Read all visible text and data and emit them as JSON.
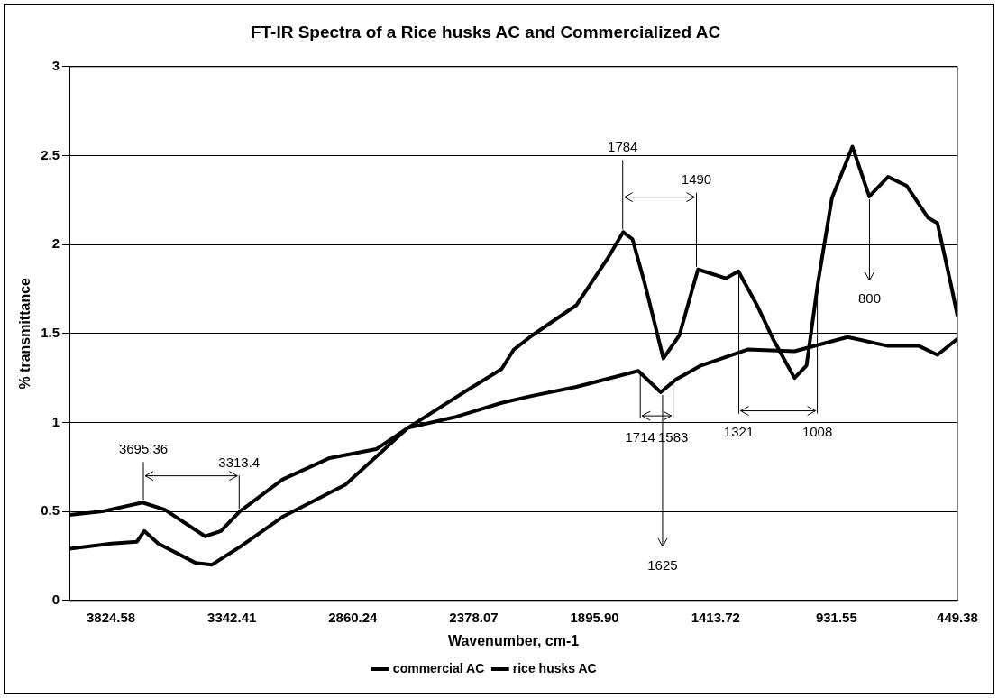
{
  "chart_data": {
    "type": "line",
    "title": "FT-IR Spectra of a Rice husks AC and Commercialized AC",
    "xlabel": "Wavenumber, cm-1",
    "ylabel": "% transmittance",
    "xlim": [
      3990,
      449.38
    ],
    "xticks": [
      3824.58,
      3342.41,
      2860.24,
      2378.07,
      {
        "value": 1895.9,
        "label": "1895.90"
      },
      1413.72,
      931.55,
      449.38
    ],
    "ylim": [
      0,
      3
    ],
    "yticks": [
      0,
      0.5,
      1,
      1.5,
      2,
      2.5,
      3
    ],
    "grid": "y",
    "legend": "bottom",
    "marker": "none",
    "line_style": "solid",
    "series": [
      {
        "name": "commercial AC",
        "color": "#000000",
        "x": [
          3990,
          3859,
          3699,
          3610,
          3449,
          3386,
          3311,
          3140,
          2953,
          2767,
          2640,
          2453,
          2267,
          2144,
          1969,
          1722,
          1670,
          1633,
          1573,
          1472,
          1286,
          1099,
          887,
          727,
          603,
          529,
          449.38
        ],
        "values": [
          0.48,
          0.5,
          0.55,
          0.51,
          0.36,
          0.39,
          0.5,
          0.68,
          0.8,
          0.85,
          0.97,
          1.03,
          1.11,
          1.15,
          1.2,
          1.29,
          1.22,
          1.17,
          1.24,
          1.32,
          1.41,
          1.4,
          1.48,
          1.43,
          1.43,
          1.38,
          1.47
        ]
      },
      {
        "name": "rice husks AC",
        "color": "#000000",
        "x": [
          3990,
          3822,
          3721,
          3692,
          3636,
          3486,
          3423,
          3311,
          3140,
          2890,
          2640,
          2394,
          2267,
          2218,
          2144,
          1968,
          1845,
          1782,
          1745,
          1696,
          1622,
          1558,
          1484,
          1372,
          1323,
          1249,
          1185,
          1099,
          1051,
          1006,
          950,
          868,
          801,
          726,
          652,
          566,
          529,
          476,
          449.38
        ],
        "values": [
          0.29,
          0.32,
          0.33,
          0.39,
          0.32,
          0.21,
          0.2,
          0.3,
          0.47,
          0.65,
          0.97,
          1.19,
          1.3,
          1.41,
          1.49,
          1.66,
          1.92,
          2.07,
          2.03,
          1.78,
          1.36,
          1.49,
          1.86,
          1.81,
          1.85,
          1.66,
          1.47,
          1.25,
          1.32,
          1.78,
          2.26,
          2.55,
          2.27,
          2.38,
          2.33,
          2.15,
          2.12,
          1.78,
          1.6
        ]
      }
    ],
    "annotations": [
      {
        "text": "3695.36",
        "x": 3695.36,
        "y": 0.55
      },
      {
        "text": "3313.4",
        "x": 3313.4,
        "y": 0.5
      },
      {
        "text": "1784",
        "x": 1784,
        "y": 2.07
      },
      {
        "text": "1490",
        "x": 1490,
        "y": 1.86
      },
      {
        "text": "1714",
        "x": 1714,
        "y": 1.29
      },
      {
        "text": "1583",
        "x": 1583,
        "y": 1.24
      },
      {
        "text": "1625",
        "x": 1625,
        "y": 1.17
      },
      {
        "text": "1321",
        "x": 1321,
        "y": 1.85
      },
      {
        "text": "1008",
        "x": 1008,
        "y": 1.78
      },
      {
        "text": "800",
        "x": 800,
        "y": 2.27
      }
    ]
  }
}
